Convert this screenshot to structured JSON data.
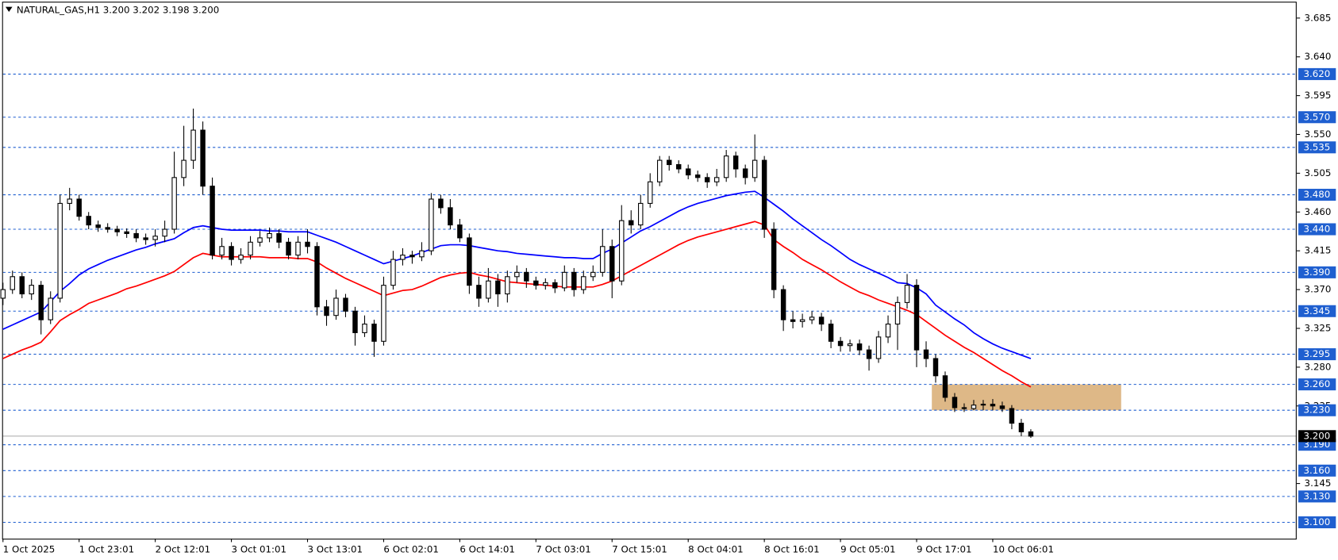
{
  "chart_data": {
    "type": "candlestick",
    "title": "NATURAL_GAS,H1  3.200 3.202 3.198 3.200",
    "categories": [
      "1 Oct 2025",
      null,
      null,
      null,
      null,
      null,
      null,
      null,
      "1 Oct 23:01",
      null,
      null,
      null,
      null,
      null,
      null,
      null,
      "2 Oct 12:01",
      null,
      null,
      null,
      null,
      null,
      null,
      null,
      "3 Oct 01:01",
      null,
      null,
      null,
      null,
      null,
      null,
      null,
      "3 Oct 13:01",
      null,
      null,
      null,
      null,
      null,
      null,
      null,
      "6 Oct 02:01",
      null,
      null,
      null,
      null,
      null,
      null,
      null,
      "6 Oct 14:01",
      null,
      null,
      null,
      null,
      null,
      null,
      null,
      "7 Oct 03:01",
      null,
      null,
      null,
      null,
      null,
      null,
      null,
      "7 Oct 15:01",
      null,
      null,
      null,
      null,
      null,
      null,
      null,
      "8 Oct 04:01",
      null,
      null,
      null,
      null,
      null,
      null,
      null,
      "8 Oct 16:01",
      null,
      null,
      null,
      null,
      null,
      null,
      null,
      "9 Oct 05:01",
      null,
      null,
      null,
      null,
      null,
      null,
      null,
      "9 Oct 17:01",
      null,
      null,
      null,
      null,
      null,
      null,
      null,
      "10 Oct 06:01",
      null,
      null,
      null,
      null
    ],
    "ohlc": [
      [
        3.36,
        3.378,
        3.352,
        3.37
      ],
      [
        3.37,
        3.392,
        3.365,
        3.385
      ],
      [
        3.385,
        3.39,
        3.36,
        3.365
      ],
      [
        3.365,
        3.382,
        3.358,
        3.375
      ],
      [
        3.375,
        3.38,
        3.318,
        3.335
      ],
      [
        3.335,
        3.368,
        3.33,
        3.36
      ],
      [
        3.36,
        3.48,
        3.355,
        3.47
      ],
      [
        3.47,
        3.488,
        3.462,
        3.475
      ],
      [
        3.475,
        3.48,
        3.45,
        3.455
      ],
      [
        3.455,
        3.46,
        3.44,
        3.445
      ],
      [
        3.445,
        3.45,
        3.437,
        3.442
      ],
      [
        3.442,
        3.447,
        3.436,
        3.44
      ],
      [
        3.44,
        3.444,
        3.432,
        3.437
      ],
      [
        3.437,
        3.441,
        3.43,
        3.435
      ],
      [
        3.435,
        3.44,
        3.425,
        3.43
      ],
      [
        3.43,
        3.435,
        3.422,
        3.428
      ],
      [
        3.428,
        3.44,
        3.42,
        3.432
      ],
      [
        3.432,
        3.45,
        3.425,
        3.44
      ],
      [
        3.44,
        3.53,
        3.435,
        3.5
      ],
      [
        3.5,
        3.56,
        3.49,
        3.52
      ],
      [
        3.52,
        3.58,
        3.51,
        3.555
      ],
      [
        3.555,
        3.565,
        3.48,
        3.49
      ],
      [
        3.49,
        3.5,
        3.405,
        3.41
      ],
      [
        3.41,
        3.43,
        3.405,
        3.42
      ],
      [
        3.42,
        3.425,
        3.398,
        3.405
      ],
      [
        3.405,
        3.418,
        3.4,
        3.41
      ],
      [
        3.41,
        3.432,
        3.405,
        3.425
      ],
      [
        3.425,
        3.438,
        3.42,
        3.43
      ],
      [
        3.43,
        3.442,
        3.425,
        3.435
      ],
      [
        3.435,
        3.44,
        3.418,
        3.425
      ],
      [
        3.425,
        3.43,
        3.405,
        3.41
      ],
      [
        3.41,
        3.432,
        3.405,
        3.425
      ],
      [
        3.425,
        3.44,
        3.412,
        3.42
      ],
      [
        3.42,
        3.425,
        3.34,
        3.35
      ],
      [
        3.35,
        3.358,
        3.328,
        3.34
      ],
      [
        3.34,
        3.37,
        3.335,
        3.36
      ],
      [
        3.36,
        3.365,
        3.338,
        3.345
      ],
      [
        3.345,
        3.35,
        3.305,
        3.32
      ],
      [
        3.32,
        3.34,
        3.315,
        3.33
      ],
      [
        3.33,
        3.335,
        3.292,
        3.31
      ],
      [
        3.31,
        3.385,
        3.305,
        3.375
      ],
      [
        3.375,
        3.415,
        3.37,
        3.405
      ],
      [
        3.405,
        3.418,
        3.398,
        3.41
      ],
      [
        3.41,
        3.415,
        3.4,
        3.408
      ],
      [
        3.408,
        3.425,
        3.403,
        3.415
      ],
      [
        3.415,
        3.482,
        3.41,
        3.475
      ],
      [
        3.475,
        3.48,
        3.458,
        3.465
      ],
      [
        3.465,
        3.475,
        3.44,
        3.445
      ],
      [
        3.445,
        3.452,
        3.425,
        3.43
      ],
      [
        3.43,
        3.435,
        3.365,
        3.375
      ],
      [
        3.375,
        3.385,
        3.35,
        3.36
      ],
      [
        3.36,
        3.395,
        3.355,
        3.38
      ],
      [
        3.38,
        3.388,
        3.35,
        3.365
      ],
      [
        3.365,
        3.392,
        3.355,
        3.385
      ],
      [
        3.385,
        3.398,
        3.378,
        3.39
      ],
      [
        3.39,
        3.395,
        3.372,
        3.38
      ],
      [
        3.38,
        3.385,
        3.37,
        3.375
      ],
      [
        3.375,
        3.383,
        3.37,
        3.378
      ],
      [
        3.378,
        3.382,
        3.366,
        3.372
      ],
      [
        3.372,
        3.398,
        3.368,
        3.39
      ],
      [
        3.39,
        3.395,
        3.362,
        3.37
      ],
      [
        3.37,
        3.392,
        3.365,
        3.385
      ],
      [
        3.385,
        3.398,
        3.38,
        3.39
      ],
      [
        3.39,
        3.44,
        3.385,
        3.42
      ],
      [
        3.42,
        3.428,
        3.36,
        3.38
      ],
      [
        3.38,
        3.468,
        3.375,
        3.45
      ],
      [
        3.45,
        3.462,
        3.435,
        3.445
      ],
      [
        3.445,
        3.48,
        3.44,
        3.47
      ],
      [
        3.47,
        3.505,
        3.465,
        3.495
      ],
      [
        3.495,
        3.525,
        3.49,
        3.52
      ],
      [
        3.52,
        3.525,
        3.508,
        3.515
      ],
      [
        3.515,
        3.52,
        3.505,
        3.51
      ],
      [
        3.51,
        3.515,
        3.498,
        3.503
      ],
      [
        3.503,
        3.508,
        3.495,
        3.5
      ],
      [
        3.5,
        3.505,
        3.488,
        3.495
      ],
      [
        3.495,
        3.51,
        3.49,
        3.5
      ],
      [
        3.5,
        3.532,
        3.495,
        3.525
      ],
      [
        3.525,
        3.53,
        3.5,
        3.51
      ],
      [
        3.51,
        3.515,
        3.492,
        3.5
      ],
      [
        3.5,
        3.55,
        3.495,
        3.52
      ],
      [
        3.52,
        3.525,
        3.43,
        3.44
      ],
      [
        3.44,
        3.448,
        3.36,
        3.37
      ],
      [
        3.37,
        3.375,
        3.322,
        3.335
      ],
      [
        3.335,
        3.345,
        3.325,
        3.333
      ],
      [
        3.333,
        3.342,
        3.326,
        3.335
      ],
      [
        3.335,
        3.345,
        3.33,
        3.338
      ],
      [
        3.338,
        3.343,
        3.322,
        3.33
      ],
      [
        3.33,
        3.335,
        3.302,
        3.31
      ],
      [
        3.31,
        3.315,
        3.298,
        3.305
      ],
      [
        3.305,
        3.312,
        3.298,
        3.307
      ],
      [
        3.307,
        3.312,
        3.294,
        3.3
      ],
      [
        3.3,
        3.305,
        3.276,
        3.29
      ],
      [
        3.29,
        3.322,
        3.285,
        3.315
      ],
      [
        3.315,
        3.34,
        3.308,
        3.33
      ],
      [
        3.33,
        3.362,
        3.3,
        3.355
      ],
      [
        3.355,
        3.388,
        3.348,
        3.375
      ],
      [
        3.375,
        3.382,
        3.28,
        3.3
      ],
      [
        3.3,
        3.31,
        3.28,
        3.29
      ],
      [
        3.29,
        3.295,
        3.262,
        3.27
      ],
      [
        3.27,
        3.275,
        3.24,
        3.245
      ],
      [
        3.245,
        3.25,
        3.228,
        3.233
      ],
      [
        3.233,
        3.238,
        3.228,
        3.232
      ],
      [
        3.232,
        3.242,
        3.23,
        3.236
      ],
      [
        3.236,
        3.242,
        3.23,
        3.237
      ],
      [
        3.237,
        3.243,
        3.23,
        3.235
      ],
      [
        3.235,
        3.24,
        3.228,
        3.232
      ],
      [
        3.232,
        3.236,
        3.208,
        3.215
      ],
      [
        3.215,
        3.22,
        3.2,
        3.205
      ],
      [
        3.205,
        3.208,
        3.198,
        3.2
      ]
    ],
    "up_color": "#ffffff",
    "down_color": "#000000",
    "lines": [
      {
        "color": "#0000ff",
        "values": [
          3.324,
          3.329,
          3.334,
          3.339,
          3.344,
          3.356,
          3.368,
          3.377,
          3.387,
          3.394,
          3.399,
          3.404,
          3.408,
          3.412,
          3.416,
          3.419,
          3.423,
          3.426,
          3.429,
          3.436,
          3.442,
          3.444,
          3.442,
          3.44,
          3.439,
          3.439,
          3.439,
          3.439,
          3.438,
          3.438,
          3.437,
          3.437,
          3.437,
          3.433,
          3.429,
          3.425,
          3.42,
          3.415,
          3.41,
          3.405,
          3.4,
          3.403,
          3.406,
          3.409,
          3.413,
          3.417,
          3.421,
          3.422,
          3.422,
          3.421,
          3.419,
          3.417,
          3.415,
          3.414,
          3.412,
          3.411,
          3.41,
          3.409,
          3.408,
          3.407,
          3.407,
          3.406,
          3.406,
          3.412,
          3.417,
          3.424,
          3.431,
          3.438,
          3.443,
          3.449,
          3.455,
          3.461,
          3.466,
          3.47,
          3.473,
          3.476,
          3.479,
          3.481,
          3.483,
          3.484,
          3.477,
          3.469,
          3.461,
          3.452,
          3.444,
          3.436,
          3.428,
          3.421,
          3.413,
          3.405,
          3.399,
          3.394,
          3.389,
          3.384,
          3.378,
          3.377,
          3.372,
          3.365,
          3.352,
          3.344,
          3.336,
          3.329,
          3.32,
          3.313,
          3.307,
          3.302,
          3.298,
          3.294,
          3.29
        ]
      },
      {
        "color": "#ff0000",
        "values": [
          3.29,
          3.295,
          3.3,
          3.304,
          3.309,
          3.321,
          3.334,
          3.341,
          3.347,
          3.354,
          3.358,
          3.362,
          3.366,
          3.371,
          3.374,
          3.378,
          3.382,
          3.386,
          3.391,
          3.399,
          3.407,
          3.412,
          3.41,
          3.408,
          3.408,
          3.408,
          3.408,
          3.408,
          3.407,
          3.407,
          3.407,
          3.406,
          3.406,
          3.402,
          3.395,
          3.389,
          3.383,
          3.378,
          3.373,
          3.368,
          3.363,
          3.366,
          3.369,
          3.37,
          3.374,
          3.379,
          3.384,
          3.387,
          3.389,
          3.39,
          3.387,
          3.385,
          3.382,
          3.379,
          3.378,
          3.377,
          3.376,
          3.375,
          3.374,
          3.373,
          3.373,
          3.373,
          3.373,
          3.376,
          3.38,
          3.386,
          3.392,
          3.398,
          3.404,
          3.41,
          3.416,
          3.422,
          3.427,
          3.431,
          3.434,
          3.437,
          3.44,
          3.443,
          3.446,
          3.449,
          3.445,
          3.428,
          3.42,
          3.413,
          3.405,
          3.399,
          3.393,
          3.386,
          3.379,
          3.373,
          3.367,
          3.363,
          3.358,
          3.354,
          3.35,
          3.346,
          3.341,
          3.333,
          3.325,
          3.317,
          3.31,
          3.303,
          3.297,
          3.29,
          3.283,
          3.276,
          3.27,
          3.263,
          3.257
        ]
      }
    ],
    "ylim": [
      3.081,
      3.703
    ],
    "yticks": [
      3.685,
      {
        "value": 3.64,
        "label": "3.640"
      },
      3.595,
      {
        "value": 3.55,
        "label": "3.550"
      },
      3.505,
      {
        "value": 3.46,
        "label": "3.460"
      },
      3.415,
      {
        "value": 3.37,
        "label": "3.370"
      },
      3.325,
      {
        "value": 3.28,
        "label": "3.280"
      },
      3.235,
      3.145
    ],
    "levels": [
      {
        "value": 3.62,
        "label": "3.620"
      },
      {
        "value": 3.57,
        "label": "3.570"
      },
      3.535,
      {
        "value": 3.48,
        "label": "3.480"
      },
      {
        "value": 3.44,
        "label": "3.440"
      },
      {
        "value": 3.39,
        "label": "3.390"
      },
      3.345,
      3.295,
      {
        "value": 3.26,
        "label": "3.260"
      },
      {
        "value": 3.23,
        "label": "3.230"
      },
      {
        "value": 3.19,
        "label": "3.190"
      },
      {
        "value": 3.16,
        "label": "3.160"
      },
      {
        "value": 3.13,
        "label": "3.130"
      },
      {
        "value": 3.1,
        "label": "3.100"
      }
    ],
    "level_color": "#1f5fd0",
    "current_price": {
      "value": 3.2,
      "label": "3.200"
    },
    "zone": {
      "low": 3.23,
      "high": 3.26,
      "color": "#deb887"
    }
  }
}
